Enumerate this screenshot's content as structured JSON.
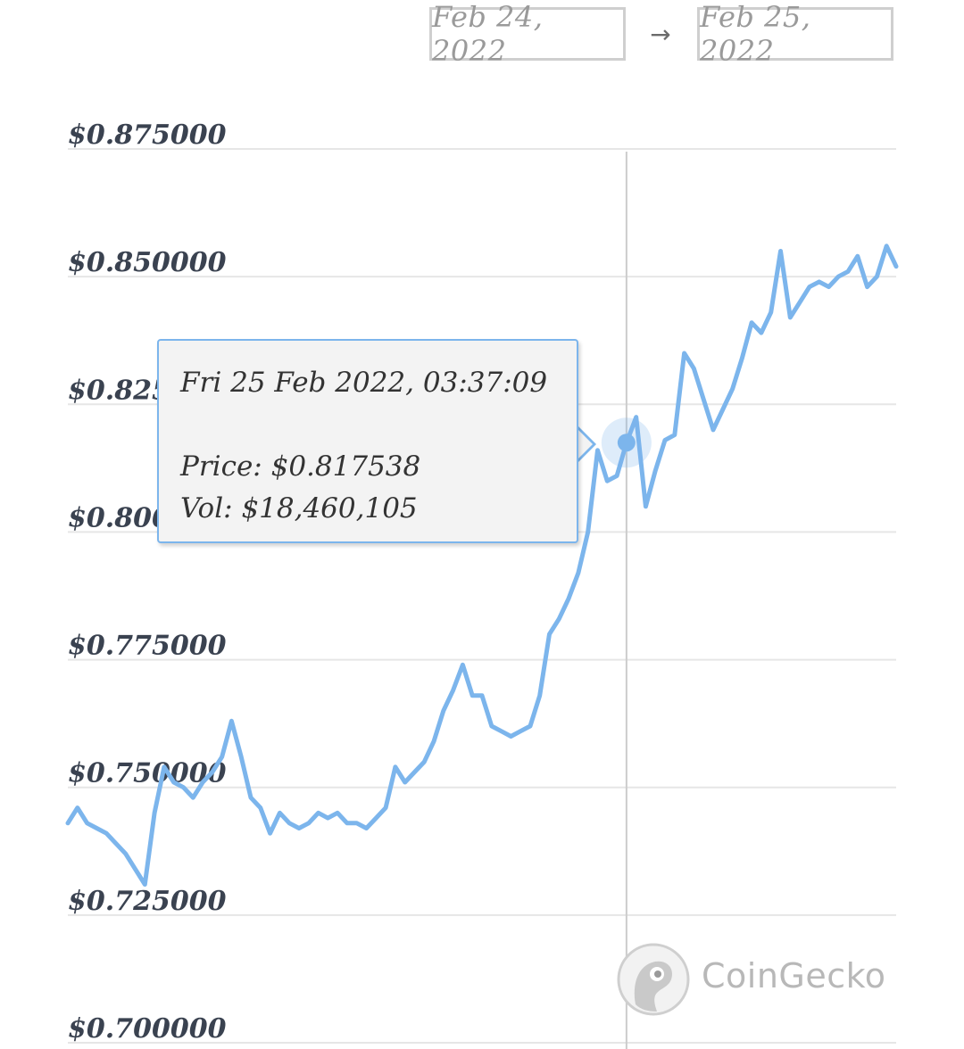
{
  "date_range": {
    "start": "Feb 24, 2022",
    "separator": "→",
    "end": "Feb 25, 2022"
  },
  "tooltip": {
    "datetime": "Fri 25 Feb 2022, 03:37:09",
    "price_label": "Price:",
    "price_value": "$0.817538",
    "vol_label": "Vol:",
    "vol_value": "$18,460,105"
  },
  "watermark": {
    "brand": "CoinGecko",
    "logo_icon": "gecko-logo-icon"
  },
  "colors": {
    "series": "#7cb5ec",
    "grid": "#e6e6e6",
    "crosshair": "#cccccc",
    "axis_text": "#3a4250"
  },
  "chart_data": {
    "type": "line",
    "ylim": [
      0.7,
      0.875
    ],
    "y_ticks": [
      0.7,
      0.725,
      0.75,
      0.775,
      0.8,
      0.825,
      0.85,
      0.875
    ],
    "y_tick_labels": [
      "$0.700000",
      "$0.725000",
      "$0.750000",
      "$0.775000",
      "$0.800000",
      "$0.825000",
      "$0.850000",
      "$0.875000"
    ],
    "grid": true,
    "legend": "none",
    "hovered_index": 58,
    "series": [
      {
        "values": [
          0.743,
          0.746,
          0.743,
          0.742,
          0.741,
          0.739,
          0.737,
          0.734,
          0.731,
          0.745,
          0.754,
          0.751,
          0.75,
          0.748,
          0.751,
          0.753,
          0.756,
          0.763,
          0.756,
          0.748,
          0.746,
          0.741,
          0.745,
          0.743,
          0.742,
          0.743,
          0.745,
          0.744,
          0.745,
          0.743,
          0.743,
          0.742,
          0.744,
          0.746,
          0.754,
          0.751,
          0.753,
          0.755,
          0.759,
          0.765,
          0.769,
          0.774,
          0.768,
          0.768,
          0.762,
          0.761,
          0.76,
          0.761,
          0.762,
          0.768,
          0.78,
          0.783,
          0.787,
          0.792,
          0.8,
          0.816,
          0.81,
          0.811,
          0.8175,
          0.8225,
          0.805,
          0.812,
          0.818,
          0.819,
          0.835,
          0.832,
          0.826,
          0.82,
          0.824,
          0.828,
          0.834,
          0.841,
          0.839,
          0.843,
          0.855,
          0.842,
          0.845,
          0.848,
          0.849,
          0.848,
          0.85,
          0.851,
          0.854,
          0.848,
          0.85,
          0.856,
          0.852
        ]
      }
    ]
  }
}
